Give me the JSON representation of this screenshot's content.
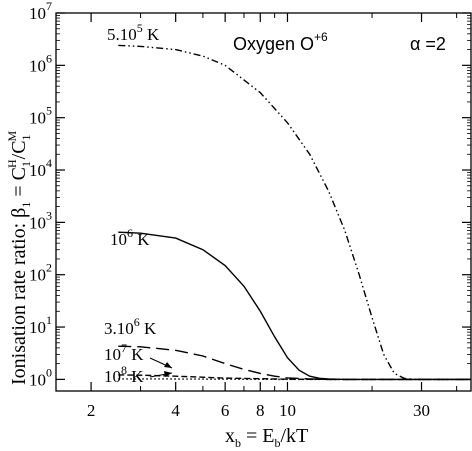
{
  "chart_data": {
    "type": "line",
    "xlabel": {
      "base": "x",
      "sub1": "b",
      "mid": " = E",
      "sub2": "b",
      "tail": "/kT"
    },
    "ylabel": {
      "prefix": "Ionisation rate ratio:  β",
      "sub1": "1",
      "mid": " = C",
      "sub2": "1",
      "sup2": "H",
      "slash": "/C",
      "sub3": "1",
      "sup3": "M"
    },
    "x_scale": "log",
    "y_scale": "log",
    "xlim": [
      1.5,
      45
    ],
    "ylim": [
      0.6,
      10000000
    ],
    "x_ticks": [
      {
        "value": 2,
        "label": "2"
      },
      {
        "value": 4,
        "label": "4"
      },
      {
        "value": 6,
        "label": "6"
      },
      {
        "value": 8,
        "label": "8"
      },
      {
        "value": 10,
        "label": "10"
      },
      {
        "value": 30,
        "label": "30"
      }
    ],
    "y_ticks": [
      {
        "value": 1,
        "base": "10",
        "exp": "0"
      },
      {
        "value": 10,
        "base": "10",
        "exp": "1"
      },
      {
        "value": 100,
        "base": "10",
        "exp": "2"
      },
      {
        "value": 1000,
        "base": "10",
        "exp": "3"
      },
      {
        "value": 10000,
        "base": "10",
        "exp": "4"
      },
      {
        "value": 100000,
        "base": "10",
        "exp": "5"
      },
      {
        "value": 1000000,
        "base": "10",
        "exp": "6"
      },
      {
        "value": 10000000,
        "base": "10",
        "exp": "7"
      }
    ],
    "annotations": {
      "ion": {
        "text": "Oxygen O",
        "sup": "+6"
      },
      "alpha": {
        "text": "α  =2"
      }
    },
    "series": [
      {
        "name": {
          "pre": "5.10",
          "sup": "5",
          "post": " K"
        },
        "style": "dashdotdot",
        "x": [
          2.5,
          3,
          4,
          5,
          6,
          8,
          10,
          12,
          14,
          16,
          18,
          20,
          22,
          24,
          26,
          28,
          30,
          35,
          45
        ],
        "y": [
          2400000,
          2300000,
          2000000,
          1500000,
          1000000,
          300000,
          80000,
          20000,
          4000,
          700,
          100,
          15,
          3,
          1.3,
          1.05,
          1.0,
          1.0,
          1.0,
          1.0
        ]
      },
      {
        "name": {
          "pre": "10",
          "sup": "6",
          "post": " K"
        },
        "style": "solid",
        "x": [
          2.5,
          3,
          4,
          5,
          6,
          7,
          8,
          9,
          10,
          11,
          12,
          13,
          14,
          16,
          20,
          30,
          45
        ],
        "y": [
          650,
          620,
          500,
          300,
          150,
          60,
          20,
          6.5,
          2.6,
          1.5,
          1.15,
          1.05,
          1.02,
          1.0,
          1.0,
          1.0,
          1.0
        ]
      },
      {
        "name": {
          "pre": "3.10",
          "sup": "6",
          "post": " K"
        },
        "style": "dashed",
        "x": [
          2.5,
          3,
          4,
          5,
          6,
          7,
          8,
          9,
          10,
          12,
          14,
          20,
          45
        ],
        "y": [
          4.3,
          4.2,
          3.6,
          2.8,
          2.0,
          1.55,
          1.3,
          1.15,
          1.07,
          1.02,
          1.0,
          1.0,
          1.0
        ]
      },
      {
        "name": {
          "pre": "10",
          "sup": "7",
          "post": " K"
        },
        "style": "dashed-short",
        "x": [
          2.5,
          3,
          4,
          5,
          6,
          8,
          10,
          15,
          45
        ],
        "y": [
          1.22,
          1.2,
          1.15,
          1.1,
          1.06,
          1.03,
          1.01,
          1.0,
          1.0
        ]
      },
      {
        "name": {
          "pre": "10",
          "sup": "8",
          "post": " K"
        },
        "style": "dotted",
        "x": [
          2.5,
          3,
          4,
          6,
          10,
          45
        ],
        "y": [
          1.02,
          1.02,
          1.015,
          1.01,
          1.0,
          1.0
        ]
      }
    ]
  }
}
